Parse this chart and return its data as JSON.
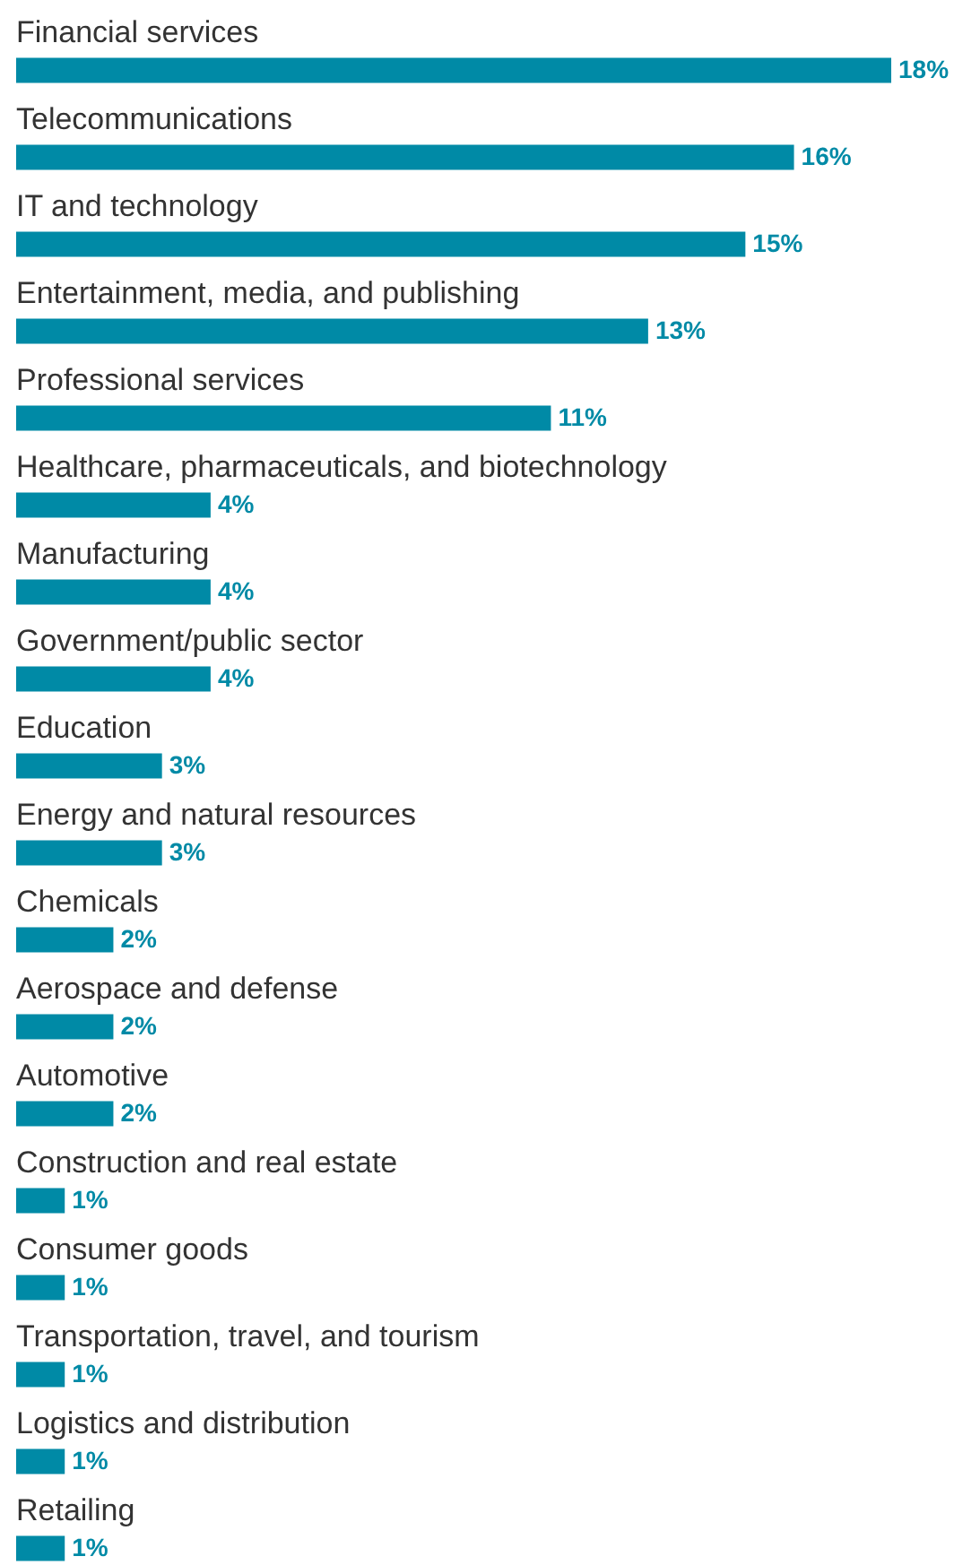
{
  "chart_data": {
    "type": "bar",
    "orientation": "horizontal",
    "categories": [
      "Financial services",
      "Telecommunications",
      "IT and technology",
      "Entertainment, media, and publishing",
      "Professional services",
      "Healthcare, pharmaceuticals, and biotechnology",
      "Manufacturing",
      "Government/public sector",
      "Education",
      "Energy and natural resources",
      "Chemicals",
      "Aerospace and defense",
      "Automotive",
      "Construction and real estate",
      "Consumer goods",
      "Transportation, travel, and tourism",
      "Logistics and distribution",
      "Retailing"
    ],
    "values": [
      18,
      16,
      15,
      13,
      11,
      4,
      4,
      4,
      3,
      3,
      2,
      2,
      2,
      1,
      1,
      1,
      1,
      1
    ],
    "value_labels": [
      "18%",
      "16%",
      "15%",
      "13%",
      "11%",
      "4%",
      "4%",
      "4%",
      "3%",
      "3%",
      "2%",
      "2%",
      "2%",
      "1%",
      "1%",
      "1%",
      "1%",
      "1%"
    ],
    "color": "#008aa6"
  }
}
